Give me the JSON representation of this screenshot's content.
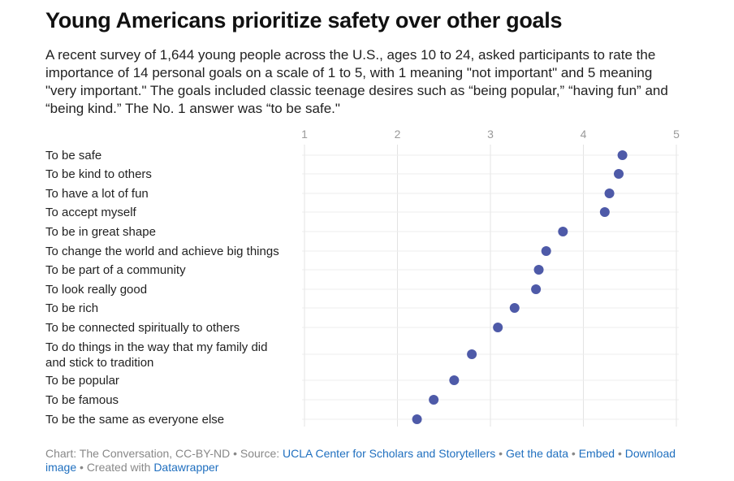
{
  "header": {
    "title": "Young Americans prioritize safety over other goals",
    "description": "A recent survey of 1,644 young people across the U.S., ages 10 to 24, asked participants to rate the importance of 14 personal goals on a scale of 1 to 5, with 1 meaning \"not important\" and 5 meaning \"very important.\" The goals included classic teenage desires such as “being popular,” “having fun” and “being kind.” The No. 1 answer was “to be safe.\""
  },
  "chart_data": {
    "type": "scatter",
    "orientation": "horizontal-dot-plot",
    "xlim": [
      1,
      5
    ],
    "x_ticks": [
      "1",
      "2",
      "3",
      "4",
      "5"
    ],
    "grid": true,
    "dot_color": "#4e5aa8",
    "categories": [
      [
        "To be safe"
      ],
      [
        "To be kind to others"
      ],
      [
        "To have a lot of fun"
      ],
      [
        "To accept myself"
      ],
      [
        "To be in great shape"
      ],
      [
        "To change the world and achieve big things"
      ],
      [
        "To be part of a community"
      ],
      [
        "To look really good"
      ],
      [
        "To be rich"
      ],
      [
        "To be connected spiritually to others"
      ],
      [
        "To do things in the way that my family did",
        "and stick to tradition"
      ],
      [
        "To be popular"
      ],
      [
        "To be famous"
      ],
      [
        "To be the same as everyone else"
      ]
    ],
    "values": [
      4.42,
      4.38,
      4.28,
      4.23,
      3.78,
      3.6,
      3.52,
      3.49,
      3.26,
      3.08,
      2.8,
      2.61,
      2.39,
      2.21
    ]
  },
  "footer": {
    "prefix": "Chart: The Conversation, CC-BY-ND • Source: ",
    "source_link": "UCLA Center for Scholars and Storytellers",
    "sep1": " • ",
    "get_data": "Get the data",
    "sep2": " • ",
    "embed": "Embed",
    "sep3": "  • ",
    "download": "Download image",
    "sep4": " • Created with ",
    "datawrapper": "Datawrapper"
  }
}
